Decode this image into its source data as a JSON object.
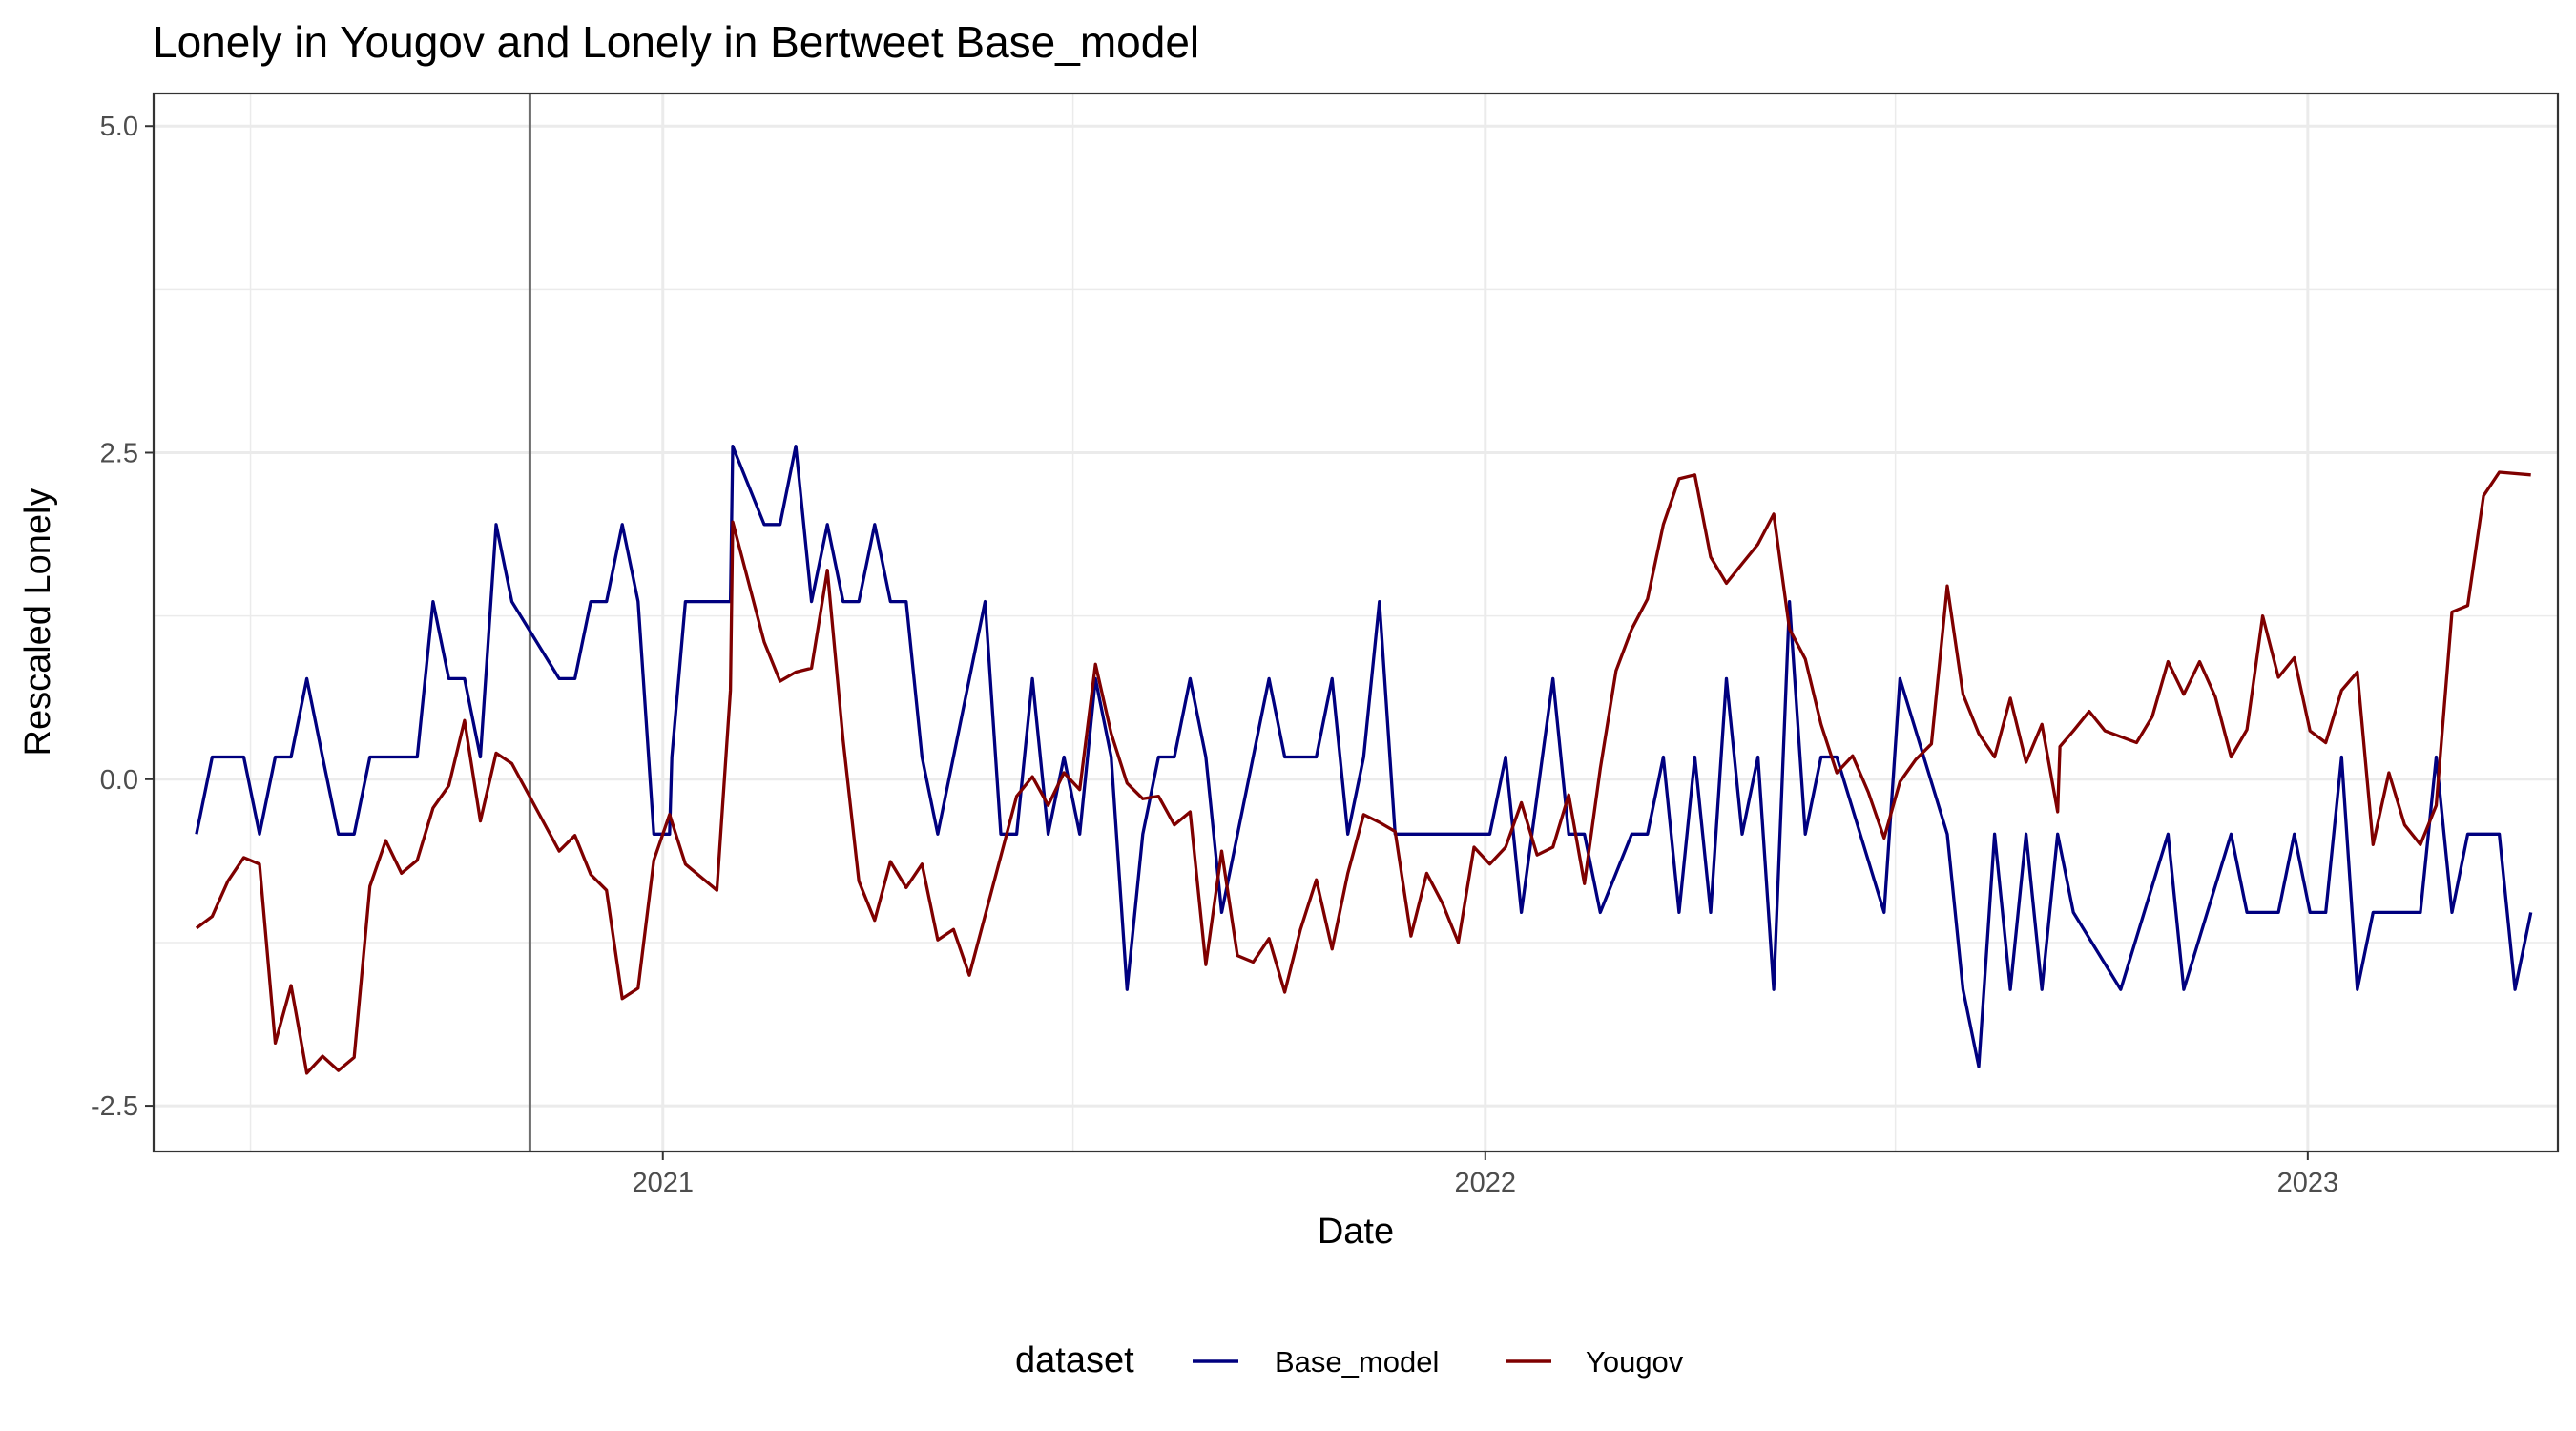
{
  "chart_data": {
    "type": "line",
    "title": "Lonely  in Yougov and  Lonely  in Bertweet  Base_model",
    "xlabel": "Date",
    "ylabel": "Rescaled  Lonely",
    "x_ticks": [
      "2021",
      "2022",
      "2023"
    ],
    "y_ticks": [
      "-2.5",
      "0.0",
      "2.5",
      "5.0"
    ],
    "xlim": [
      "2020-05-20",
      "2023-04-22"
    ],
    "ylim": [
      -2.85,
      5.25
    ],
    "grid": true,
    "legend_position": "bottom",
    "legend_title": "dataset",
    "vline_date": "2020-11-03",
    "series": [
      {
        "name": "Base_model",
        "color": "#00007f",
        "points": [
          [
            "2020-06-08",
            -0.42
          ],
          [
            "2020-06-15",
            0.17
          ],
          [
            "2020-06-22",
            0.17
          ],
          [
            "2020-06-29",
            0.17
          ],
          [
            "2020-07-06",
            -0.42
          ],
          [
            "2020-07-13",
            0.17
          ],
          [
            "2020-07-20",
            0.17
          ],
          [
            "2020-07-27",
            0.77
          ],
          [
            "2020-08-03",
            0.17
          ],
          [
            "2020-08-10",
            -0.42
          ],
          [
            "2020-08-17",
            -0.42
          ],
          [
            "2020-08-24",
            0.17
          ],
          [
            "2020-08-31",
            0.17
          ],
          [
            "2020-09-07",
            0.17
          ],
          [
            "2020-09-14",
            0.17
          ],
          [
            "2020-09-21",
            1.36
          ],
          [
            "2020-09-28",
            0.77
          ],
          [
            "2020-10-05",
            0.77
          ],
          [
            "2020-10-12",
            0.17
          ],
          [
            "2020-10-19",
            1.95
          ],
          [
            "2020-10-26",
            1.36
          ],
          [
            "2020-11-16",
            0.77
          ],
          [
            "2020-11-23",
            0.77
          ],
          [
            "2020-11-30",
            1.36
          ],
          [
            "2020-12-07",
            1.36
          ],
          [
            "2020-12-14",
            1.95
          ],
          [
            "2020-12-21",
            1.36
          ],
          [
            "2020-12-28",
            -0.42
          ],
          [
            "2021-01-04",
            -0.42
          ],
          [
            "2021-01-05",
            0.17
          ],
          [
            "2021-01-11",
            1.36
          ],
          [
            "2021-01-18",
            1.36
          ],
          [
            "2021-01-25",
            1.36
          ],
          [
            "2021-01-31",
            1.36
          ],
          [
            "2021-02-01",
            2.55
          ],
          [
            "2021-02-15",
            1.95
          ],
          [
            "2021-02-22",
            1.95
          ],
          [
            "2021-03-01",
            2.55
          ],
          [
            "2021-03-08",
            1.36
          ],
          [
            "2021-03-15",
            1.95
          ],
          [
            "2021-03-22",
            1.36
          ],
          [
            "2021-03-29",
            1.36
          ],
          [
            "2021-04-05",
            1.95
          ],
          [
            "2021-04-12",
            1.36
          ],
          [
            "2021-04-19",
            1.36
          ],
          [
            "2021-04-26",
            0.17
          ],
          [
            "2021-05-03",
            -0.42
          ],
          [
            "2021-05-24",
            1.36
          ],
          [
            "2021-05-31",
            -0.42
          ],
          [
            "2021-06-07",
            -0.42
          ],
          [
            "2021-06-14",
            0.77
          ],
          [
            "2021-06-21",
            -0.42
          ],
          [
            "2021-06-28",
            0.17
          ],
          [
            "2021-07-05",
            -0.42
          ],
          [
            "2021-07-12",
            0.77
          ],
          [
            "2021-07-19",
            0.17
          ],
          [
            "2021-07-26",
            -1.61
          ],
          [
            "2021-08-02",
            -0.42
          ],
          [
            "2021-08-09",
            0.17
          ],
          [
            "2021-08-16",
            0.17
          ],
          [
            "2021-08-23",
            0.77
          ],
          [
            "2021-08-30",
            0.17
          ],
          [
            "2021-09-06",
            -1.02
          ],
          [
            "2021-09-27",
            0.77
          ],
          [
            "2021-10-04",
            0.17
          ],
          [
            "2021-10-11",
            0.17
          ],
          [
            "2021-10-18",
            0.17
          ],
          [
            "2021-10-25",
            0.77
          ],
          [
            "2021-11-01",
            -0.42
          ],
          [
            "2021-11-08",
            0.17
          ],
          [
            "2021-11-15",
            1.36
          ],
          [
            "2021-11-22",
            -0.42
          ],
          [
            "2022-01-03",
            -0.42
          ],
          [
            "2022-01-10",
            0.17
          ],
          [
            "2022-01-17",
            -1.02
          ],
          [
            "2022-01-31",
            0.77
          ],
          [
            "2022-02-07",
            -0.42
          ],
          [
            "2022-02-14",
            -0.42
          ],
          [
            "2022-02-21",
            -1.02
          ],
          [
            "2022-03-07",
            -0.42
          ],
          [
            "2022-03-14",
            -0.42
          ],
          [
            "2022-03-21",
            0.17
          ],
          [
            "2022-03-28",
            -1.02
          ],
          [
            "2022-04-04",
            0.17
          ],
          [
            "2022-04-11",
            -1.02
          ],
          [
            "2022-04-18",
            0.77
          ],
          [
            "2022-04-25",
            -0.42
          ],
          [
            "2022-05-02",
            0.17
          ],
          [
            "2022-05-09",
            -1.61
          ],
          [
            "2022-05-16",
            1.36
          ],
          [
            "2022-05-23",
            -0.42
          ],
          [
            "2022-05-30",
            0.17
          ],
          [
            "2022-06-06",
            0.17
          ],
          [
            "2022-06-27",
            -1.02
          ],
          [
            "2022-07-04",
            0.77
          ],
          [
            "2022-07-25",
            -0.42
          ],
          [
            "2022-08-01",
            -1.61
          ],
          [
            "2022-08-08",
            -2.2
          ],
          [
            "2022-08-15",
            -0.42
          ],
          [
            "2022-08-22",
            -1.61
          ],
          [
            "2022-08-29",
            -0.42
          ],
          [
            "2022-09-05",
            -1.61
          ],
          [
            "2022-09-12",
            -0.42
          ],
          [
            "2022-09-19",
            -1.02
          ],
          [
            "2022-10-10",
            -1.61
          ],
          [
            "2022-10-31",
            -0.42
          ],
          [
            "2022-11-07",
            -1.61
          ],
          [
            "2022-11-28",
            -0.42
          ],
          [
            "2022-12-05",
            -1.02
          ],
          [
            "2022-12-19",
            -1.02
          ],
          [
            "2022-12-26",
            -0.42
          ],
          [
            "2023-01-02",
            -1.02
          ],
          [
            "2023-01-09",
            -1.02
          ],
          [
            "2023-01-16",
            0.17
          ],
          [
            "2023-01-23",
            -1.61
          ],
          [
            "2023-01-30",
            -1.02
          ],
          [
            "2023-02-06",
            -1.02
          ],
          [
            "2023-02-13",
            -1.02
          ],
          [
            "2023-02-20",
            -1.02
          ],
          [
            "2023-02-27",
            0.17
          ],
          [
            "2023-03-06",
            -1.02
          ],
          [
            "2023-03-13",
            -0.42
          ],
          [
            "2023-03-20",
            -0.42
          ],
          [
            "2023-03-27",
            -0.42
          ],
          [
            "2023-04-03",
            -1.61
          ],
          [
            "2023-04-10",
            -1.02
          ]
        ]
      },
      {
        "name": "Yougov",
        "color": "#7f0000",
        "points": [
          [
            "2020-06-08",
            -1.14
          ],
          [
            "2020-06-15",
            -1.05
          ],
          [
            "2020-06-22",
            -0.78
          ],
          [
            "2020-06-29",
            -0.6
          ],
          [
            "2020-07-06",
            -0.65
          ],
          [
            "2020-07-13",
            -2.02
          ],
          [
            "2020-07-20",
            -1.58
          ],
          [
            "2020-07-27",
            -2.25
          ],
          [
            "2020-08-03",
            -2.12
          ],
          [
            "2020-08-10",
            -2.23
          ],
          [
            "2020-08-17",
            -2.13
          ],
          [
            "2020-08-24",
            -0.82
          ],
          [
            "2020-08-31",
            -0.47
          ],
          [
            "2020-09-07",
            -0.72
          ],
          [
            "2020-09-14",
            -0.62
          ],
          [
            "2020-09-21",
            -0.22
          ],
          [
            "2020-09-28",
            -0.05
          ],
          [
            "2020-10-05",
            0.45
          ],
          [
            "2020-10-12",
            -0.32
          ],
          [
            "2020-10-19",
            0.2
          ],
          [
            "2020-10-26",
            0.12
          ],
          [
            "2020-11-16",
            -0.55
          ],
          [
            "2020-11-23",
            -0.43
          ],
          [
            "2020-11-30",
            -0.73
          ],
          [
            "2020-12-07",
            -0.85
          ],
          [
            "2020-12-14",
            -1.68
          ],
          [
            "2020-12-21",
            -1.6
          ],
          [
            "2020-12-28",
            -0.62
          ],
          [
            "2021-01-04",
            -0.27
          ],
          [
            "2021-01-11",
            -0.65
          ],
          [
            "2021-01-18",
            -0.75
          ],
          [
            "2021-01-25",
            -0.85
          ],
          [
            "2021-01-31",
            0.68
          ],
          [
            "2021-02-01",
            1.97
          ],
          [
            "2021-02-15",
            1.05
          ],
          [
            "2021-02-22",
            0.75
          ],
          [
            "2021-03-01",
            0.82
          ],
          [
            "2021-03-08",
            0.85
          ],
          [
            "2021-03-15",
            1.6
          ],
          [
            "2021-03-22",
            0.3
          ],
          [
            "2021-03-29",
            -0.78
          ],
          [
            "2021-04-05",
            -1.08
          ],
          [
            "2021-04-12",
            -0.63
          ],
          [
            "2021-04-19",
            -0.83
          ],
          [
            "2021-04-26",
            -0.65
          ],
          [
            "2021-05-03",
            -1.23
          ],
          [
            "2021-05-10",
            -1.15
          ],
          [
            "2021-05-17",
            -1.5
          ],
          [
            "2021-06-07",
            -0.13
          ],
          [
            "2021-06-14",
            0.02
          ],
          [
            "2021-06-21",
            -0.2
          ],
          [
            "2021-06-28",
            0.05
          ],
          [
            "2021-07-05",
            -0.08
          ],
          [
            "2021-07-12",
            0.88
          ],
          [
            "2021-07-19",
            0.35
          ],
          [
            "2021-07-26",
            -0.03
          ],
          [
            "2021-08-02",
            -0.15
          ],
          [
            "2021-08-09",
            -0.13
          ],
          [
            "2021-08-16",
            -0.35
          ],
          [
            "2021-08-23",
            -0.25
          ],
          [
            "2021-08-30",
            -1.42
          ],
          [
            "2021-09-06",
            -0.55
          ],
          [
            "2021-09-13",
            -1.35
          ],
          [
            "2021-09-20",
            -1.4
          ],
          [
            "2021-09-27",
            -1.22
          ],
          [
            "2021-10-04",
            -1.63
          ],
          [
            "2021-10-11",
            -1.15
          ],
          [
            "2021-10-18",
            -0.77
          ],
          [
            "2021-10-25",
            -1.3
          ],
          [
            "2021-11-01",
            -0.72
          ],
          [
            "2021-11-08",
            -0.27
          ],
          [
            "2021-11-15",
            -0.33
          ],
          [
            "2021-11-22",
            -0.4
          ],
          [
            "2021-11-29",
            -1.2
          ],
          [
            "2021-12-06",
            -0.72
          ],
          [
            "2021-12-13",
            -0.95
          ],
          [
            "2021-12-20",
            -1.25
          ],
          [
            "2021-12-27",
            -0.52
          ],
          [
            "2022-01-03",
            -0.65
          ],
          [
            "2022-01-10",
            -0.52
          ],
          [
            "2022-01-17",
            -0.18
          ],
          [
            "2022-01-24",
            -0.58
          ],
          [
            "2022-01-31",
            -0.52
          ],
          [
            "2022-02-07",
            -0.12
          ],
          [
            "2022-02-14",
            -0.8
          ],
          [
            "2022-02-21",
            0.08
          ],
          [
            "2022-02-28",
            0.83
          ],
          [
            "2022-03-07",
            1.15
          ],
          [
            "2022-03-14",
            1.38
          ],
          [
            "2022-03-21",
            1.95
          ],
          [
            "2022-03-28",
            2.3
          ],
          [
            "2022-04-04",
            2.33
          ],
          [
            "2022-04-11",
            1.7
          ],
          [
            "2022-04-18",
            1.5
          ],
          [
            "2022-04-25",
            1.65
          ],
          [
            "2022-05-02",
            1.8
          ],
          [
            "2022-05-09",
            2.03
          ],
          [
            "2022-05-16",
            1.15
          ],
          [
            "2022-05-23",
            0.92
          ],
          [
            "2022-05-30",
            0.42
          ],
          [
            "2022-06-06",
            0.05
          ],
          [
            "2022-06-13",
            0.18
          ],
          [
            "2022-06-20",
            -0.1
          ],
          [
            "2022-06-27",
            -0.45
          ],
          [
            "2022-07-04",
            -0.02
          ],
          [
            "2022-07-11",
            0.15
          ],
          [
            "2022-07-18",
            0.27
          ],
          [
            "2022-07-25",
            1.48
          ],
          [
            "2022-08-01",
            0.65
          ],
          [
            "2022-08-08",
            0.35
          ],
          [
            "2022-08-15",
            0.17
          ],
          [
            "2022-08-22",
            0.62
          ],
          [
            "2022-08-29",
            0.13
          ],
          [
            "2022-09-05",
            0.42
          ],
          [
            "2022-09-12",
            -0.25
          ],
          [
            "2022-09-13",
            0.25
          ],
          [
            "2022-09-19",
            0.37
          ],
          [
            "2022-09-26",
            0.52
          ],
          [
            "2022-10-03",
            0.37
          ],
          [
            "2022-10-17",
            0.28
          ],
          [
            "2022-10-24",
            0.48
          ],
          [
            "2022-10-31",
            0.9
          ],
          [
            "2022-11-07",
            0.65
          ],
          [
            "2022-11-14",
            0.9
          ],
          [
            "2022-11-21",
            0.63
          ],
          [
            "2022-11-28",
            0.17
          ],
          [
            "2022-12-05",
            0.38
          ],
          [
            "2022-12-12",
            1.25
          ],
          [
            "2022-12-19",
            0.78
          ],
          [
            "2022-12-26",
            0.93
          ],
          [
            "2023-01-02",
            0.37
          ],
          [
            "2023-01-09",
            0.28
          ],
          [
            "2023-01-16",
            0.68
          ],
          [
            "2023-01-23",
            0.82
          ],
          [
            "2023-01-30",
            -0.5
          ],
          [
            "2023-02-06",
            0.05
          ],
          [
            "2023-02-13",
            -0.35
          ],
          [
            "2023-02-20",
            -0.5
          ],
          [
            "2023-02-27",
            -0.2
          ],
          [
            "2023-03-06",
            1.28
          ],
          [
            "2023-03-13",
            1.33
          ],
          [
            "2023-03-20",
            2.17
          ],
          [
            "2023-03-27",
            2.35
          ],
          [
            "2023-04-10",
            2.33
          ]
        ]
      }
    ]
  }
}
